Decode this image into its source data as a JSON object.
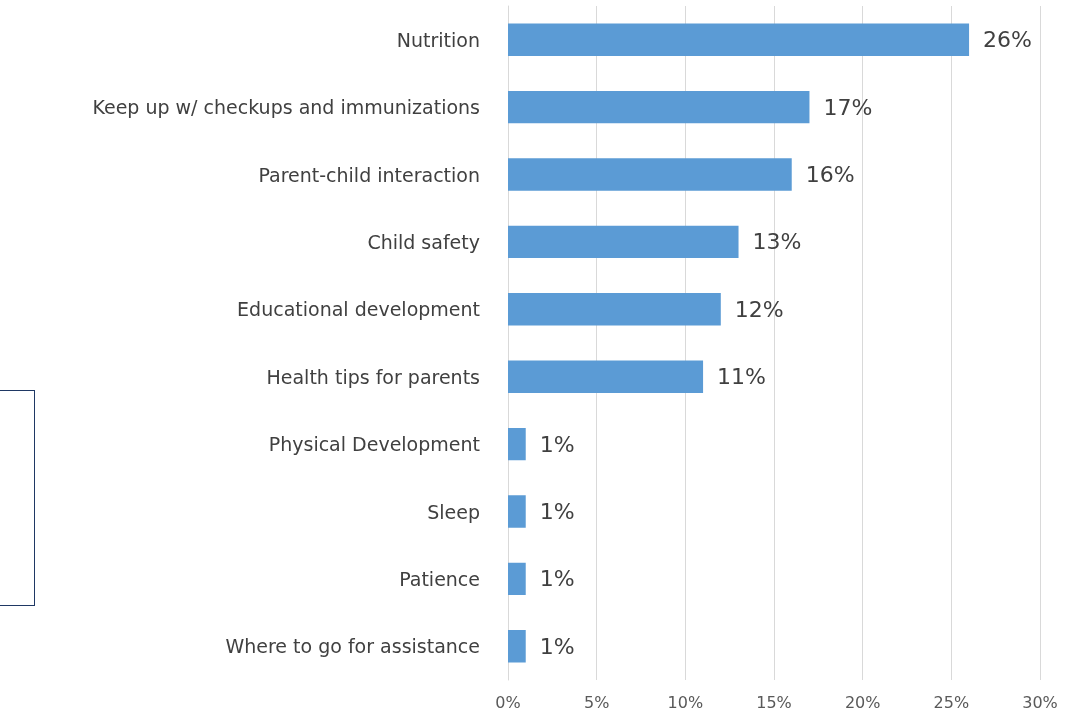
{
  "chart_data": {
    "type": "bar",
    "orientation": "horizontal",
    "categories": [
      "Nutrition",
      "Keep up w/ checkups and immunizations",
      "Parent-child interaction",
      "Child safety",
      "Educational development",
      "Health tips for parents",
      "Physical Development",
      "Sleep",
      "Patience",
      "Where to go for assistance"
    ],
    "values": [
      26,
      17,
      16,
      13,
      12,
      11,
      1,
      1,
      1,
      1
    ],
    "value_labels": [
      "26%",
      "17%",
      "16%",
      "13%",
      "12%",
      "11%",
      "1%",
      "1%",
      "1%",
      "1%"
    ],
    "color": "#5b9bd5",
    "xlim": [
      0,
      30
    ],
    "xticks": [
      {
        "value": 0,
        "label": "0%"
      },
      {
        "value": 5,
        "label": "5%"
      },
      {
        "value": 10,
        "label": "10%"
      },
      {
        "value": 15,
        "label": "15%"
      },
      {
        "value": 20,
        "label": "20%"
      },
      {
        "value": 25,
        "label": "25%"
      },
      {
        "value": 30,
        "label": "30%"
      }
    ],
    "grid": "x"
  }
}
